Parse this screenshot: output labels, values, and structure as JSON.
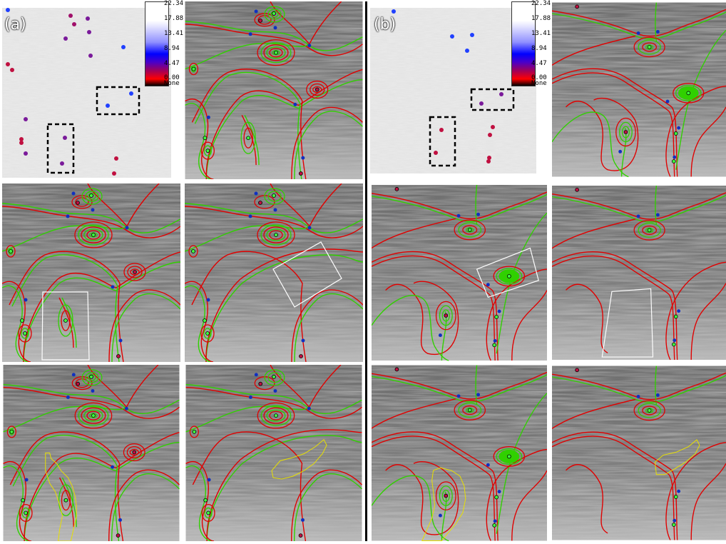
{
  "figure": {
    "label_a": "(a)",
    "label_b": "(b)",
    "colorbar_ticks": [
      "22.34",
      "17.88",
      "13.41",
      "8.94",
      "4.47",
      "0.00",
      "None"
    ],
    "colors": {
      "streamline_dark": "#4a4a4a",
      "streamline_light": "#f2f2f2",
      "separatrix_red": "#e00000",
      "separatrix_green": "#30d000",
      "critical_blue": "#1030c0",
      "critical_green": "#40ff40",
      "roi_white": "#ffffff",
      "roi_yellow": "#e8e000",
      "roi_dashed": "#000000"
    },
    "panels": [
      {
        "id": "a-overview",
        "kind": "scatter",
        "roi": "dashed"
      },
      {
        "id": "a-topology",
        "kind": "topology-a",
        "roi": "none"
      },
      {
        "id": "a-box-left",
        "kind": "topology-a",
        "roi": "white-rect"
      },
      {
        "id": "a-box-rotated",
        "kind": "topology-a-edit",
        "roi": "white-rot"
      },
      {
        "id": "a-shape-left",
        "kind": "topology-a",
        "roi": "yellow-left"
      },
      {
        "id": "a-shape-right",
        "kind": "topology-a-edit",
        "roi": "yellow-right"
      },
      {
        "id": "b-overview",
        "kind": "scatter",
        "roi": "dashed"
      },
      {
        "id": "b-topology",
        "kind": "topology-b",
        "roi": "none"
      },
      {
        "id": "b-box-rotated",
        "kind": "topology-b",
        "roi": "white-rot"
      },
      {
        "id": "b-box-left",
        "kind": "topology-b-edit",
        "roi": "white-rect"
      },
      {
        "id": "b-shape-left",
        "kind": "topology-b",
        "roi": "yellow-left"
      },
      {
        "id": "b-shape-right",
        "kind": "topology-b-edit",
        "roi": "yellow-right"
      }
    ]
  }
}
